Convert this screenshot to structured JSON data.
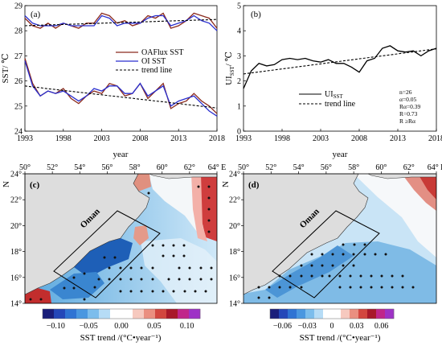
{
  "chart_data": [
    {
      "panel": "(a)",
      "type": "line",
      "xlabel": "year",
      "ylabel": "SST/ ℃",
      "xlim": [
        1993,
        2018
      ],
      "ylim": [
        24,
        29
      ],
      "xticks": [
        "1993",
        "1998",
        "2003",
        "2008",
        "2013",
        "2018"
      ],
      "yticks": [
        "24",
        "25",
        "26",
        "27",
        "28",
        "29"
      ],
      "x": [
        1993,
        1994,
        1995,
        1996,
        1997,
        1998,
        1999,
        2000,
        2001,
        2002,
        2003,
        2004,
        2005,
        2006,
        2007,
        2008,
        2009,
        2010,
        2011,
        2012,
        2013,
        2014,
        2015,
        2016,
        2017,
        2018
      ],
      "legend_position": "center-right",
      "series": [
        {
          "name": "OAFlux SST",
          "color": "#8b2b1e",
          "group": "upper",
          "values": [
            28.5,
            28.2,
            28.1,
            28.3,
            28.1,
            28.3,
            28.2,
            28.1,
            28.3,
            28.3,
            28.7,
            28.6,
            28.3,
            28.4,
            28.2,
            28.3,
            28.6,
            28.5,
            28.7,
            28.1,
            28.2,
            28.4,
            28.7,
            28.6,
            28.5,
            28.1
          ]
        },
        {
          "name": "OI SST",
          "color": "#2a2fcf",
          "group": "upper",
          "values": [
            28.6,
            28.3,
            28.2,
            28.2,
            28.2,
            28.3,
            28.2,
            28.2,
            28.2,
            28.2,
            28.6,
            28.5,
            28.2,
            28.3,
            28.3,
            28.3,
            28.5,
            28.6,
            28.6,
            28.2,
            28.3,
            28.4,
            28.6,
            28.4,
            28.3,
            28.0
          ]
        },
        {
          "name": "trend line",
          "color": "#000000",
          "dashed": true,
          "group": "upper",
          "values": [
            28.2,
            28.21,
            28.22,
            28.23,
            28.24,
            28.25,
            28.26,
            28.27,
            28.28,
            28.29,
            28.3,
            28.31,
            28.32,
            28.33,
            28.34,
            28.35,
            28.36,
            28.37,
            28.38,
            28.39,
            28.4,
            28.41,
            28.42,
            28.43,
            28.44,
            28.45
          ]
        },
        {
          "name": "",
          "color": "#8b2b1e",
          "group": "lower",
          "values": [
            26.9,
            25.9,
            25.4,
            25.6,
            25.5,
            25.7,
            25.3,
            25.1,
            25.4,
            25.6,
            25.5,
            25.9,
            25.8,
            25.4,
            25.5,
            25.9,
            25.3,
            25.6,
            25.9,
            24.9,
            25.1,
            25.2,
            25.5,
            25.2,
            25.0,
            24.7
          ]
        },
        {
          "name": "",
          "color": "#2a2fcf",
          "group": "lower",
          "values": [
            26.8,
            25.8,
            25.4,
            25.6,
            25.5,
            25.6,
            25.4,
            25.2,
            25.4,
            25.7,
            25.6,
            25.8,
            25.8,
            25.5,
            25.5,
            25.9,
            25.4,
            25.6,
            25.8,
            25.0,
            25.2,
            25.3,
            25.4,
            25.1,
            24.8,
            24.6
          ]
        },
        {
          "name": "",
          "color": "#000000",
          "dashed": true,
          "group": "lower",
          "values": [
            25.8,
            25.76,
            25.73,
            25.69,
            25.66,
            25.62,
            25.59,
            25.55,
            25.52,
            25.48,
            25.45,
            25.41,
            25.38,
            25.34,
            25.31,
            25.27,
            25.24,
            25.2,
            25.17,
            25.13,
            25.1,
            25.06,
            25.03,
            24.99,
            24.96,
            24.92
          ]
        }
      ]
    },
    {
      "panel": "(b)",
      "type": "line",
      "xlabel": "year",
      "ylabel": "UI",
      "ylabel_sub": "SST",
      "ylabel_unit": "/ ℃",
      "xlim": [
        1993,
        2018
      ],
      "ylim": [
        0,
        5
      ],
      "xticks": [
        "1993",
        "1998",
        "2003",
        "2008",
        "2013",
        "2018"
      ],
      "yticks": [
        "0",
        "1",
        "2",
        "3",
        "4",
        "5"
      ],
      "x": [
        1993,
        1994,
        1995,
        1996,
        1997,
        1998,
        1999,
        2000,
        2001,
        2002,
        2003,
        2004,
        2005,
        2006,
        2007,
        2008,
        2009,
        2010,
        2011,
        2012,
        2013,
        2014,
        2015,
        2016,
        2017,
        2018
      ],
      "legend_position": "center-right",
      "series": [
        {
          "name": "UI",
          "name_sub": "SST",
          "color": "#000000",
          "values": [
            1.7,
            2.4,
            2.7,
            2.6,
            2.65,
            2.85,
            2.9,
            2.85,
            2.9,
            2.8,
            2.75,
            2.85,
            2.7,
            2.7,
            2.55,
            2.35,
            2.8,
            2.9,
            3.3,
            3.4,
            3.2,
            3.15,
            3.2,
            3.0,
            3.2,
            3.3
          ]
        },
        {
          "name": "trend line",
          "color": "#000000",
          "dashed": true,
          "values": [
            2.28,
            2.32,
            2.36,
            2.4,
            2.44,
            2.48,
            2.52,
            2.56,
            2.6,
            2.64,
            2.68,
            2.72,
            2.76,
            2.8,
            2.84,
            2.88,
            2.92,
            2.96,
            3.0,
            3.04,
            3.08,
            3.12,
            3.16,
            3.2,
            3.24,
            3.28
          ]
        }
      ],
      "stats": [
        "n=26",
        "α=0.05",
        "Rα=0.39",
        "R=0.73",
        "R ≥Rα"
      ]
    },
    {
      "panel": "(c)",
      "type": "heatmap",
      "region_label": "Oman",
      "lon_ticks": [
        "50°",
        "52°",
        "54°",
        "56°",
        "58°",
        "60°",
        "62°",
        "64° E"
      ],
      "lat_ticks": [
        "24°",
        "22°",
        "20°",
        "18°",
        "16°",
        "14°"
      ],
      "lat_axis_label": "N",
      "colorbar_label": "SST trend /(°C•year⁻¹)",
      "colorbar_range": [
        -0.12,
        0.12
      ],
      "colorbar_ticks": [
        "−0.10",
        "−0.05",
        "0.00",
        "0.05",
        "0.10"
      ]
    },
    {
      "panel": "(d)",
      "type": "heatmap",
      "region_label": "Oman",
      "lon_ticks": [
        "50°",
        "52°",
        "54°",
        "56°",
        "58°",
        "60°",
        "62°",
        "64° E"
      ],
      "lat_ticks": [
        "24°",
        "22°",
        "20°",
        "18°",
        "16°",
        "14°"
      ],
      "lat_axis_label": "N",
      "colorbar_label": "SST trend /(°C•year⁻¹)",
      "colorbar_range": [
        -0.075,
        0.075
      ],
      "colorbar_ticks": [
        "−0.06",
        "−0.03",
        "0",
        "0.03",
        "0.06"
      ]
    }
  ]
}
